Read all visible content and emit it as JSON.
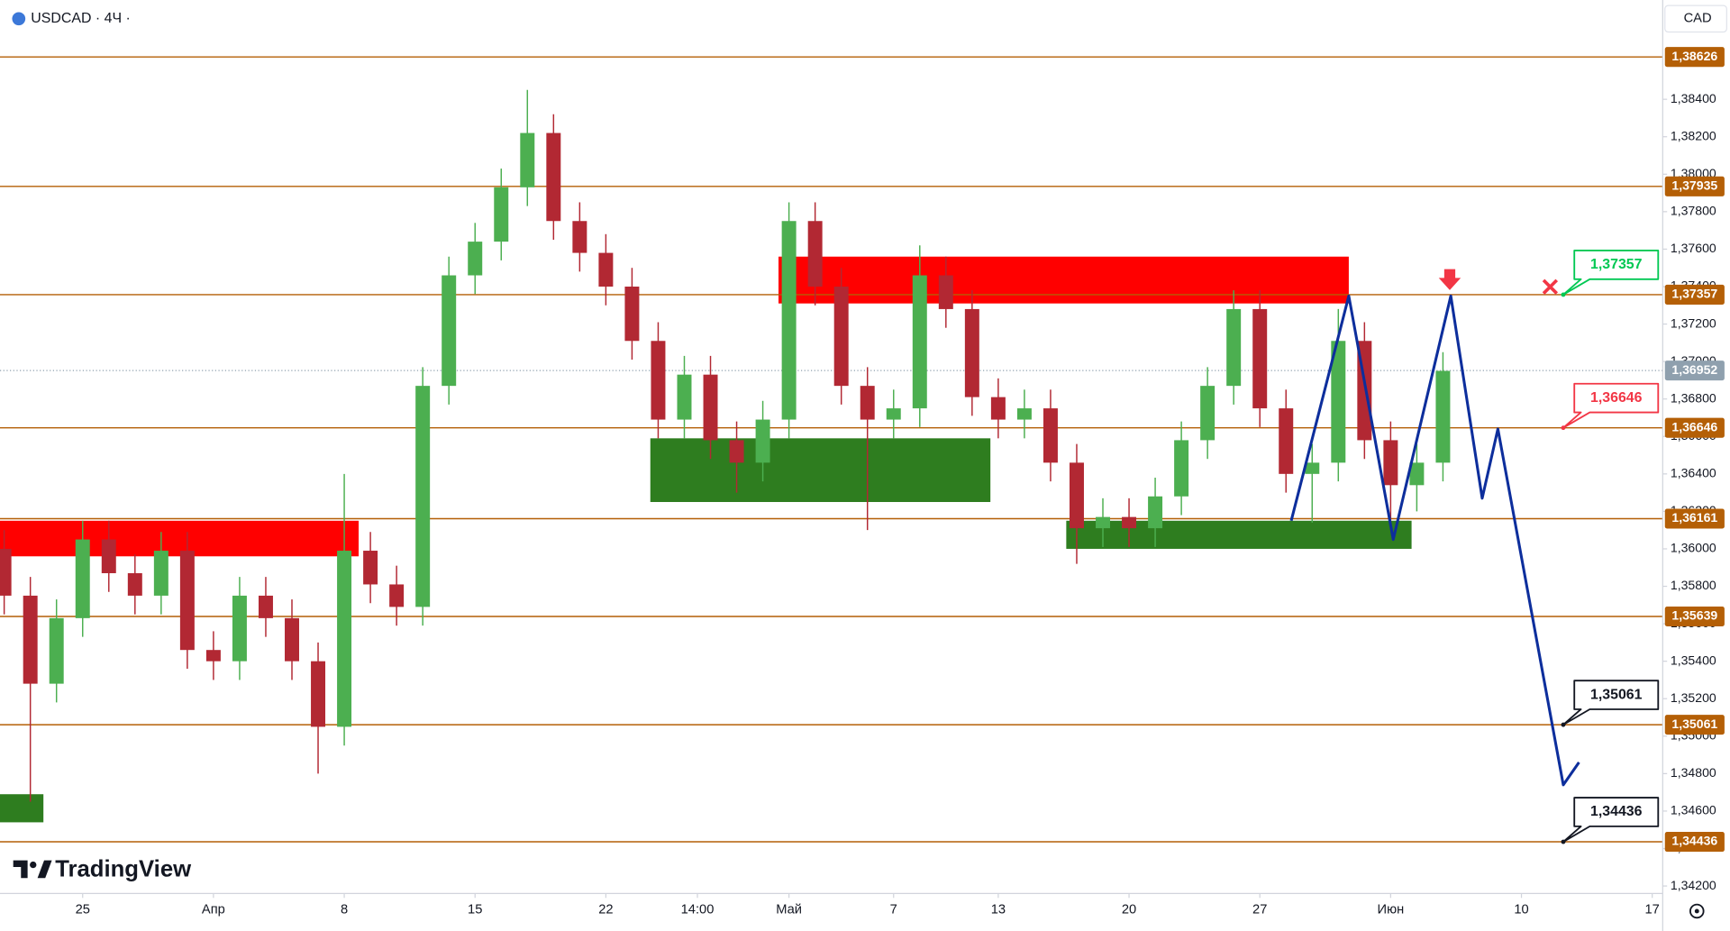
{
  "header": {
    "symbol": "USDCAD · 4Ч ·",
    "currency": "CAD",
    "brand": "TradingView"
  },
  "chart_data": {
    "type": "candlestick",
    "x": [
      -3,
      -2,
      -1,
      0,
      1,
      2,
      3,
      4,
      5,
      6,
      7,
      8,
      9,
      10,
      11,
      12,
      13,
      14,
      15,
      16,
      17,
      18,
      19,
      20,
      21,
      22,
      23,
      24,
      25,
      26,
      27,
      28,
      29,
      30,
      31,
      32,
      33,
      34,
      35,
      36,
      37,
      38,
      39,
      40,
      41,
      42,
      43,
      44,
      45,
      46,
      47,
      48,
      49,
      50,
      51,
      52
    ],
    "open": [
      1.36,
      1.3575,
      1.3528,
      1.3563,
      1.3605,
      1.3587,
      1.3575,
      1.3599,
      1.3546,
      1.354,
      1.3575,
      1.3563,
      1.354,
      1.3505,
      1.3599,
      1.3581,
      1.3569,
      1.3687,
      1.3746,
      1.3764,
      1.3793,
      1.3822,
      1.3775,
      1.3758,
      1.374,
      1.3711,
      1.3669,
      1.3693,
      1.3658,
      1.3646,
      1.3669,
      1.3775,
      1.374,
      1.3687,
      1.3669,
      1.3675,
      1.3746,
      1.3728,
      1.3681,
      1.3669,
      1.3675,
      1.3646,
      1.3611,
      1.3617,
      1.3611,
      1.3628,
      1.3658,
      1.3687,
      1.3728,
      1.3675,
      1.364,
      1.3646,
      1.3711,
      1.3658,
      1.3634,
      1.3646
    ],
    "high": [
      1.361,
      1.3585,
      1.3573,
      1.3615,
      1.3615,
      1.3597,
      1.3609,
      1.3609,
      1.3556,
      1.3585,
      1.3585,
      1.3573,
      1.355,
      1.364,
      1.3609,
      1.3591,
      1.3697,
      1.3756,
      1.3774,
      1.3803,
      1.3845,
      1.3832,
      1.3785,
      1.3768,
      1.375,
      1.3721,
      1.3703,
      1.3703,
      1.3668,
      1.3679,
      1.3785,
      1.3785,
      1.375,
      1.3697,
      1.3685,
      1.3762,
      1.3756,
      1.3738,
      1.3691,
      1.3685,
      1.3685,
      1.3656,
      1.3627,
      1.3627,
      1.3638,
      1.3668,
      1.3697,
      1.3738,
      1.3738,
      1.3685,
      1.3656,
      1.3728,
      1.3721,
      1.3668,
      1.3656,
      1.3705
    ],
    "low": [
      1.3565,
      1.3465,
      1.3518,
      1.3553,
      1.3577,
      1.3565,
      1.3565,
      1.3536,
      1.353,
      1.353,
      1.3553,
      1.353,
      1.348,
      1.3495,
      1.3571,
      1.3559,
      1.3559,
      1.3677,
      1.3736,
      1.3754,
      1.3783,
      1.3765,
      1.3748,
      1.373,
      1.3701,
      1.3659,
      1.3659,
      1.3648,
      1.363,
      1.3636,
      1.3659,
      1.373,
      1.3677,
      1.361,
      1.3659,
      1.3665,
      1.3718,
      1.3671,
      1.3659,
      1.3659,
      1.3636,
      1.3592,
      1.3601,
      1.3601,
      1.3601,
      1.3618,
      1.3648,
      1.3677,
      1.3665,
      1.363,
      1.3614,
      1.3636,
      1.3648,
      1.3614,
      1.362,
      1.3636
    ],
    "close": [
      1.3575,
      1.3528,
      1.3563,
      1.3605,
      1.3587,
      1.3575,
      1.3599,
      1.3546,
      1.354,
      1.3575,
      1.3563,
      1.354,
      1.3505,
      1.3599,
      1.3581,
      1.3569,
      1.3687,
      1.3746,
      1.3764,
      1.3793,
      1.3822,
      1.3775,
      1.3758,
      1.374,
      1.3711,
      1.3669,
      1.3693,
      1.3658,
      1.3646,
      1.3669,
      1.3775,
      1.374,
      1.3687,
      1.3669,
      1.3675,
      1.3746,
      1.3728,
      1.3681,
      1.3669,
      1.3675,
      1.3646,
      1.3611,
      1.3617,
      1.3611,
      1.3628,
      1.3658,
      1.3687,
      1.3728,
      1.3675,
      1.364,
      1.3646,
      1.3711,
      1.3658,
      1.3634,
      1.3646,
      1.3695
    ],
    "up_color": "#4caf50",
    "down_color": "#b22833",
    "xlim": [
      -3.16,
      60.4
    ],
    "xticks": [
      {
        "value": 0,
        "label": "25"
      },
      {
        "value": 5,
        "label": "Апр"
      },
      {
        "value": 10,
        "label": "8"
      },
      {
        "value": 15,
        "label": "15"
      },
      {
        "value": 20,
        "label": "22"
      },
      {
        "value": 23.5,
        "label": "14:00"
      },
      {
        "value": 27,
        "label": "Май"
      },
      {
        "value": 31,
        "label": "7"
      },
      {
        "value": 35,
        "label": "13"
      },
      {
        "value": 40,
        "label": "20"
      },
      {
        "value": 45,
        "label": "27"
      },
      {
        "value": 50,
        "label": "Июн"
      },
      {
        "value": 55,
        "label": "10"
      },
      {
        "value": 60,
        "label": "17"
      }
    ],
    "ylim": [
      1.3416,
      1.3893
    ],
    "yticks": [
      {
        "value": 1.342,
        "label": "1,34200"
      },
      {
        "value": 1.344,
        "label": "1,34400"
      },
      {
        "value": 1.346,
        "label": "1,34600"
      },
      {
        "value": 1.348,
        "label": "1,34800"
      },
      {
        "value": 1.35,
        "label": "1,35000"
      },
      {
        "value": 1.352,
        "label": "1,35200"
      },
      {
        "value": 1.354,
        "label": "1,35400"
      },
      {
        "value": 1.356,
        "label": "1,35600"
      },
      {
        "value": 1.358,
        "label": "1,35800"
      },
      {
        "value": 1.36,
        "label": "1,36000"
      },
      {
        "value": 1.362,
        "label": "1,36200"
      },
      {
        "value": 1.364,
        "label": "1,36400"
      },
      {
        "value": 1.366,
        "label": "1,36600"
      },
      {
        "value": 1.368,
        "label": "1,36800"
      },
      {
        "value": 1.37,
        "label": "1,37000"
      },
      {
        "value": 1.372,
        "label": "1,37200"
      },
      {
        "value": 1.374,
        "label": "1,37400"
      },
      {
        "value": 1.376,
        "label": "1,37600"
      },
      {
        "value": 1.378,
        "label": "1,37800"
      },
      {
        "value": 1.38,
        "label": "1,38000"
      },
      {
        "value": 1.382,
        "label": "1,38200"
      },
      {
        "value": 1.384,
        "label": "1,38400"
      }
    ],
    "level_color": "#b45f06",
    "levels": [
      {
        "value": 1.38626,
        "label": "1,38626"
      },
      {
        "value": 1.37935,
        "label": "1,37935"
      },
      {
        "value": 1.37357,
        "label": "1,37357"
      },
      {
        "value": 1.36646,
        "label": "1,36646"
      },
      {
        "value": 1.36161,
        "label": "1,36161"
      },
      {
        "value": 1.35639,
        "label": "1,35639"
      },
      {
        "value": 1.35061,
        "label": "1,35061"
      },
      {
        "value": 1.34436,
        "label": "1,34436"
      }
    ],
    "last_price": {
      "value": 1.36952,
      "label": "1,36952",
      "color": "#8fa0ae"
    },
    "callouts": [
      {
        "x": 56.6,
        "value": 1.37357,
        "label": "1,37357",
        "color": "#00c853"
      },
      {
        "x": 56.6,
        "value": 1.36646,
        "label": "1,36646",
        "color": "#f23645"
      },
      {
        "x": 56.6,
        "value": 1.35061,
        "label": "1,35061",
        "color": "#131722"
      },
      {
        "x": 56.6,
        "value": 1.34436,
        "label": "1,34436",
        "color": "#131722"
      }
    ],
    "zones": [
      {
        "x": [
          -3.16,
          10.55
        ],
        "y": [
          1.3596,
          1.3615
        ],
        "color": "#ff0000"
      },
      {
        "x": [
          26.6,
          48.4
        ],
        "y": [
          1.3731,
          1.3756
        ],
        "color": "#ff0000"
      },
      {
        "x": [
          21.7,
          34.7
        ],
        "y": [
          1.3625,
          1.3659
        ],
        "color": "#2e7d1f"
      },
      {
        "x": [
          37.6,
          50.8
        ],
        "y": [
          1.36,
          1.3615
        ],
        "color": "#2e7d1f"
      },
      {
        "x": [
          -3.16,
          -1.5
        ],
        "y": [
          1.3454,
          1.3469
        ],
        "color": "#2e7d1f"
      }
    ],
    "forecast": {
      "x": [
        46.2,
        48.4,
        50.1,
        52.3,
        53.5,
        54.1,
        56.6,
        57.2
      ],
      "y": [
        1.3615,
        1.3735,
        1.3605,
        1.3735,
        1.3627,
        1.3664,
        1.3474,
        1.3486
      ],
      "color": "#0d2e9c"
    }
  }
}
